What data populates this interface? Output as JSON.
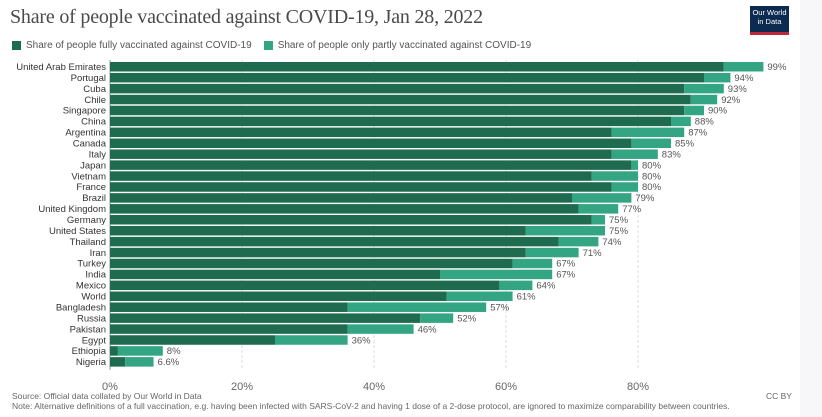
{
  "title": "Share of people vaccinated against COVID-19, Jan 28, 2022",
  "logo": {
    "line1": "Our World",
    "line2": "in Data"
  },
  "footer": {
    "source": "Source: Official data collated by Our World in Data",
    "note": "Note: Alternative definitions of a full vaccination, e.g. having been infected with SARS-CoV-2 and having 1 dose of a 2-dose protocol, are ignored to maximize comparability between countries.",
    "license": "CC BY"
  },
  "colors": {
    "fully": "#1f6b50",
    "partly": "#33a583"
  },
  "chart_data": {
    "type": "bar",
    "orientation": "horizontal",
    "stacked": true,
    "title": "Share of people vaccinated against COVID-19, Jan 28, 2022",
    "xlabel": "",
    "ylabel": "",
    "xlim": [
      0,
      100
    ],
    "xticks": [
      "0%",
      "20%",
      "40%",
      "60%",
      "80%"
    ],
    "xtick_values": [
      0,
      20,
      40,
      60,
      80
    ],
    "grid": "vertical dashed",
    "legend": "top-left",
    "categories": [
      "United Arab Emirates",
      "Portugal",
      "Cuba",
      "Chile",
      "Singapore",
      "China",
      "Argentina",
      "Canada",
      "Italy",
      "Japan",
      "Vietnam",
      "France",
      "Brazil",
      "United Kingdom",
      "Germany",
      "United States",
      "Thailand",
      "Iran",
      "Turkey",
      "India",
      "Mexico",
      "World",
      "Bangladesh",
      "Russia",
      "Pakistan",
      "Egypt",
      "Ethiopia",
      "Nigeria"
    ],
    "series": [
      {
        "name": "Share of people fully vaccinated against COVID-19",
        "values": [
          93,
          90,
          87,
          88,
          87,
          85,
          76,
          79,
          76,
          79,
          73,
          76,
          70,
          71,
          73,
          63,
          68,
          63,
          61,
          50,
          59,
          51,
          36,
          47,
          36,
          25,
          1.2,
          2.3
        ]
      },
      {
        "name": "Share of people only partly vaccinated against COVID-19",
        "values": [
          6,
          4,
          6,
          4,
          3,
          3,
          11,
          6,
          7,
          1,
          7,
          4,
          9,
          6,
          2,
          12,
          6,
          8,
          6,
          17,
          5,
          10,
          21,
          5,
          10,
          11,
          6.8,
          4.3
        ]
      }
    ],
    "totals_labels": [
      "99%",
      "94%",
      "93%",
      "92%",
      "90%",
      "88%",
      "87%",
      "85%",
      "83%",
      "80%",
      "80%",
      "80%",
      "79%",
      "77%",
      "75%",
      "75%",
      "74%",
      "71%",
      "67%",
      "67%",
      "64%",
      "61%",
      "57%",
      "52%",
      "46%",
      "36%",
      "8%",
      "6.6%"
    ]
  }
}
